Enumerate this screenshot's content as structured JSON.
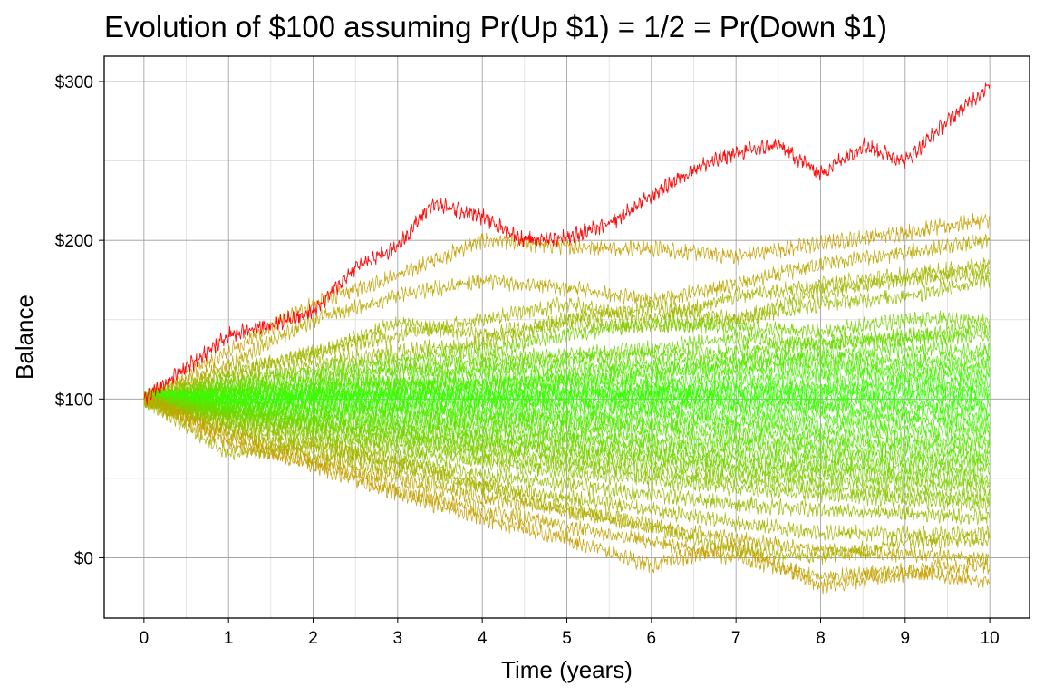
{
  "chart_data": {
    "type": "line",
    "title": "Evolution of $100 assuming Pr(Up $1) = 1/2 = Pr(Down $1)",
    "xlabel": "Time (years)",
    "ylabel": "Balance",
    "xlim": [
      0,
      10
    ],
    "ylim": [
      -38,
      316
    ],
    "x_ticks": [
      0,
      1,
      2,
      3,
      4,
      5,
      6,
      7,
      8,
      9,
      10
    ],
    "x_tick_labels": [
      "0",
      "1",
      "2",
      "3",
      "4",
      "5",
      "6",
      "7",
      "8",
      "9",
      "10"
    ],
    "y_ticks": [
      0,
      100,
      200,
      300
    ],
    "y_tick_labels": [
      "$0",
      "$100",
      "$200",
      "$300"
    ],
    "grid": true,
    "color_scale": "line color runs from green (ending balance near $100) through olive/brown (ending balance far from $100) to red (highest path)",
    "colors": {
      "high": "#ff0000",
      "mid": "#c8a000",
      "low": "#33ff00"
    },
    "series": [
      {
        "x": [
          0,
          1,
          1.5,
          2,
          2.5,
          3,
          3.4,
          4,
          4.5,
          5,
          5.5,
          6,
          6.5,
          7,
          7.5,
          8,
          8.5,
          9,
          9.5,
          10
        ],
        "values": [
          100,
          140,
          147,
          155,
          183,
          196,
          223,
          215,
          200,
          202,
          210,
          228,
          245,
          255,
          260,
          242,
          260,
          250,
          275,
          298
        ]
      },
      {
        "x": [
          0,
          1,
          2,
          3,
          4,
          5,
          6,
          7,
          8,
          9,
          10
        ],
        "values": [
          100,
          130,
          160,
          178,
          200,
          196,
          195,
          190,
          198,
          205,
          213
        ]
      },
      {
        "x": [
          0,
          1,
          2,
          3,
          4,
          5,
          6,
          7,
          8,
          9,
          10
        ],
        "values": [
          100,
          122,
          150,
          165,
          175,
          170,
          162,
          172,
          185,
          192,
          200
        ]
      },
      {
        "x": [
          0,
          1,
          2,
          3,
          4,
          5,
          6,
          7,
          8,
          9,
          10
        ],
        "values": [
          100,
          115,
          130,
          140,
          150,
          160,
          150,
          165,
          172,
          178,
          185
        ]
      },
      {
        "x": [
          0,
          1,
          2,
          3,
          4,
          5,
          6,
          7,
          8,
          9,
          10
        ],
        "values": [
          100,
          118,
          128,
          148,
          140,
          150,
          158,
          150,
          168,
          175,
          180
        ]
      },
      {
        "x": [
          0,
          1,
          2,
          3,
          4,
          5,
          6,
          7,
          8,
          9,
          10
        ],
        "values": [
          100,
          110,
          122,
          130,
          135,
          148,
          145,
          150,
          160,
          165,
          175
        ]
      },
      {
        "x": [
          0,
          1,
          2,
          3,
          4,
          5,
          6,
          7,
          8,
          9,
          10
        ],
        "values": [
          100,
          112,
          118,
          125,
          130,
          140,
          148,
          145,
          142,
          150,
          150
        ]
      },
      {
        "x": [
          0,
          1,
          2,
          3,
          4,
          5,
          6,
          7,
          8,
          9,
          10
        ],
        "values": [
          100,
          108,
          115,
          120,
          125,
          128,
          132,
          138,
          135,
          140,
          145
        ]
      },
      {
        "x": [
          0,
          1,
          2,
          3,
          4,
          5,
          6,
          7,
          8,
          9,
          10
        ],
        "values": [
          100,
          105,
          112,
          118,
          120,
          125,
          128,
          130,
          135,
          138,
          140
        ]
      },
      {
        "x": [
          0,
          1,
          2,
          3,
          4,
          5,
          6,
          7,
          8,
          9,
          10
        ],
        "values": [
          100,
          106,
          110,
          112,
          118,
          120,
          122,
          125,
          128,
          132,
          130
        ]
      },
      {
        "x": [
          0,
          1,
          2,
          3,
          4,
          5,
          6,
          7,
          8,
          9,
          10
        ],
        "values": [
          100,
          104,
          108,
          110,
          112,
          115,
          118,
          122,
          125,
          125,
          125
        ]
      },
      {
        "x": [
          0,
          1,
          2,
          3,
          4,
          5,
          6,
          7,
          8,
          9,
          10
        ],
        "values": [
          100,
          102,
          106,
          108,
          110,
          112,
          115,
          118,
          120,
          120,
          120
        ]
      },
      {
        "x": [
          0,
          1,
          2,
          3,
          4,
          5,
          6,
          7,
          8,
          9,
          10
        ],
        "values": [
          100,
          103,
          104,
          106,
          108,
          110,
          110,
          112,
          115,
          115,
          115
        ]
      },
      {
        "x": [
          0,
          1,
          2,
          3,
          4,
          5,
          6,
          7,
          8,
          9,
          10
        ],
        "values": [
          100,
          101,
          103,
          104,
          105,
          106,
          106,
          108,
          108,
          110,
          110
        ]
      },
      {
        "x": [
          0,
          1,
          2,
          3,
          4,
          5,
          6,
          7,
          8,
          9,
          10
        ],
        "values": [
          100,
          100,
          102,
          103,
          103,
          104,
          104,
          105,
          105,
          106,
          105
        ]
      },
      {
        "x": [
          0,
          1,
          2,
          3,
          4,
          5,
          6,
          7,
          8,
          9,
          10
        ],
        "values": [
          100,
          99,
          101,
          101,
          101,
          102,
          102,
          102,
          102,
          102,
          100
        ]
      },
      {
        "x": [
          0,
          1,
          2,
          3,
          4,
          5,
          6,
          7,
          8,
          9,
          10
        ],
        "values": [
          100,
          98,
          99,
          99,
          99,
          99,
          99,
          98,
          98,
          97,
          95
        ]
      },
      {
        "x": [
          0,
          1,
          2,
          3,
          4,
          5,
          6,
          7,
          8,
          9,
          10
        ],
        "values": [
          100,
          97,
          97,
          96,
          96,
          96,
          95,
          95,
          94,
          92,
          90
        ]
      },
      {
        "x": [
          0,
          1,
          2,
          3,
          4,
          5,
          6,
          7,
          8,
          9,
          10
        ],
        "values": [
          100,
          96,
          95,
          94,
          93,
          92,
          91,
          90,
          89,
          87,
          85
        ]
      },
      {
        "x": [
          0,
          1,
          2,
          3,
          4,
          5,
          6,
          7,
          8,
          9,
          10
        ],
        "values": [
          100,
          95,
          93,
          92,
          90,
          88,
          87,
          85,
          83,
          82,
          80
        ]
      },
      {
        "x": [
          0,
          1,
          2,
          3,
          4,
          5,
          6,
          7,
          8,
          9,
          10
        ],
        "values": [
          100,
          94,
          91,
          89,
          87,
          85,
          83,
          81,
          78,
          76,
          75
        ]
      },
      {
        "x": [
          0,
          1,
          2,
          3,
          4,
          5,
          6,
          7,
          8,
          9,
          10
        ],
        "values": [
          100,
          93,
          89,
          86,
          84,
          81,
          79,
          76,
          73,
          71,
          70
        ]
      },
      {
        "x": [
          0,
          1,
          2,
          3,
          4,
          5,
          6,
          7,
          8,
          9,
          10
        ],
        "values": [
          100,
          92,
          87,
          83,
          80,
          77,
          74,
          72,
          68,
          66,
          65
        ]
      },
      {
        "x": [
          0,
          1,
          2,
          3,
          4,
          5,
          6,
          7,
          8,
          9,
          10
        ],
        "values": [
          100,
          91,
          86,
          81,
          77,
          74,
          70,
          67,
          64,
          61,
          60
        ]
      },
      {
        "x": [
          0,
          1,
          2,
          3,
          4,
          5,
          6,
          7,
          8,
          9,
          10
        ],
        "values": [
          100,
          90,
          84,
          78,
          74,
          70,
          66,
          62,
          59,
          56,
          55
        ]
      },
      {
        "x": [
          0,
          1,
          2,
          3,
          4,
          5,
          6,
          7,
          8,
          9,
          10
        ],
        "values": [
          100,
          89,
          82,
          76,
          71,
          67,
          63,
          58,
          55,
          52,
          50
        ]
      },
      {
        "x": [
          0,
          1,
          2,
          3,
          4,
          5,
          6,
          7,
          8,
          9,
          10
        ],
        "values": [
          100,
          88,
          80,
          73,
          68,
          63,
          59,
          54,
          50,
          47,
          45
        ]
      },
      {
        "x": [
          0,
          1,
          2,
          3,
          4,
          5,
          6,
          7,
          8,
          9,
          10
        ],
        "values": [
          100,
          86,
          77,
          70,
          64,
          59,
          54,
          49,
          45,
          41,
          38
        ]
      },
      {
        "x": [
          0,
          1,
          2,
          3,
          4,
          5,
          6,
          7,
          8,
          9,
          10
        ],
        "values": [
          100,
          84,
          74,
          66,
          60,
          54,
          49,
          44,
          40,
          36,
          33
        ]
      },
      {
        "x": [
          0,
          1,
          2,
          3,
          4,
          5,
          6,
          7,
          8,
          9,
          10
        ],
        "values": [
          100,
          82,
          70,
          60,
          52,
          46,
          40,
          34,
          30,
          28,
          25
        ]
      },
      {
        "x": [
          0,
          1,
          2,
          3,
          4,
          5,
          6,
          7,
          8,
          9,
          10
        ],
        "values": [
          100,
          80,
          66,
          55,
          45,
          38,
          30,
          22,
          16,
          15,
          15
        ]
      },
      {
        "x": [
          0,
          1,
          2,
          3,
          4,
          5,
          6,
          7,
          8,
          9,
          10
        ],
        "values": [
          100,
          78,
          63,
          50,
          38,
          30,
          20,
          12,
          5,
          2,
          0
        ]
      },
      {
        "x": [
          0,
          1,
          2,
          3,
          4,
          5,
          6,
          7,
          8,
          9,
          10
        ],
        "values": [
          100,
          75,
          60,
          44,
          30,
          20,
          10,
          0,
          -12,
          -8,
          -5
        ]
      },
      {
        "x": [
          0,
          1,
          2,
          3,
          4,
          5,
          6,
          7,
          8,
          9,
          10
        ],
        "values": [
          100,
          72,
          58,
          40,
          25,
          12,
          -5,
          8,
          -18,
          -10,
          -15
        ]
      },
      {
        "x": [
          0,
          1,
          2,
          3,
          4,
          5,
          6,
          7,
          8,
          9,
          10
        ],
        "values": [
          100,
          65,
          72,
          60,
          46,
          30,
          20,
          5,
          0,
          10,
          12
        ]
      }
    ]
  }
}
